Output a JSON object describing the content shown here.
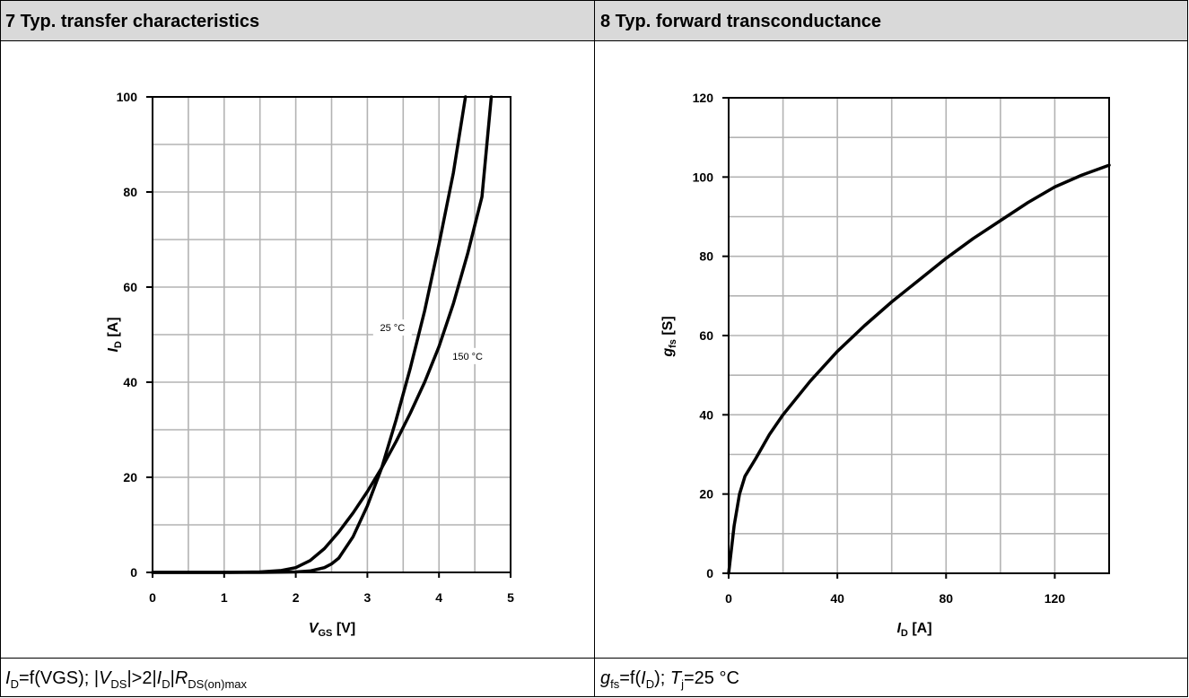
{
  "panels": [
    {
      "title": "7 Typ. transfer characteristics",
      "caption": {
        "i": "I",
        "sub_d": "D",
        "eq": "=f(VGS); |",
        "v": "V",
        "sub_ds": "DS",
        "rest1": "|>2|",
        "i2": "I",
        "sub_d2": "D",
        "rest2": "|",
        "r": "R",
        "sub_r": "DS(on)max"
      }
    },
    {
      "title": "8 Typ. forward transconductance",
      "caption": {
        "g": "g",
        "sub_fs": "fs",
        "eq": "=f(",
        "i": "I",
        "sub_d": "D",
        "rest": "); ",
        "t": "T",
        "sub_j": "j",
        "tail": "=25 °C"
      }
    }
  ],
  "chart_data": [
    {
      "type": "line",
      "xlabel": {
        "main": "V",
        "sub": "GS",
        "unit": " [V]"
      },
      "ylabel": {
        "main": "I",
        "sub": "D",
        "unit": " [A]"
      },
      "xlim": [
        0,
        5
      ],
      "ylim": [
        0,
        100
      ],
      "xticks": [
        0,
        1,
        2,
        3,
        4,
        5
      ],
      "yticks": [
        0,
        20,
        40,
        60,
        80,
        100
      ],
      "grid": true,
      "series": [
        {
          "name": "25 °C",
          "x": [
            0,
            1.0,
            1.5,
            1.8,
            2.0,
            2.2,
            2.4,
            2.6,
            2.8,
            3.0,
            3.2,
            3.4,
            3.6,
            3.8,
            4.0,
            4.2,
            4.4,
            4.6,
            4.73
          ],
          "y": [
            0,
            0,
            0.1,
            0.4,
            1.0,
            2.5,
            5.0,
            8.5,
            12.5,
            17.0,
            22.0,
            27.5,
            33.5,
            40.0,
            47.5,
            56.5,
            67.0,
            79.0,
            100.0
          ]
        },
        {
          "name": "150 °C",
          "x": [
            0,
            1.0,
            1.5,
            2.0,
            2.2,
            2.4,
            2.5,
            2.6,
            2.8,
            3.0,
            3.2,
            3.4,
            3.6,
            3.8,
            4.0,
            4.2,
            4.37
          ],
          "y": [
            0,
            0,
            0,
            0.1,
            0.3,
            1.0,
            1.8,
            3.0,
            7.5,
            14.0,
            22.0,
            32.0,
            43.0,
            55.0,
            69.0,
            84.0,
            100.0
          ]
        }
      ],
      "labels": [
        {
          "text": "25 °C",
          "x": 3.35,
          "y": 51.5
        },
        {
          "text": "150 °C",
          "x": 4.4,
          "y": 45.5
        }
      ]
    },
    {
      "type": "line",
      "xlabel": {
        "main": "I",
        "sub": "D",
        "unit": " [A]"
      },
      "ylabel": {
        "main": "g",
        "sub": "fs",
        "unit": " [S]"
      },
      "xlim": [
        0,
        140
      ],
      "ylim": [
        0,
        120
      ],
      "xticks": [
        0,
        40,
        80,
        120
      ],
      "yticks": [
        0,
        20,
        40,
        60,
        80,
        100,
        120
      ],
      "grid": true,
      "series": [
        {
          "name": "",
          "x": [
            0,
            2,
            4,
            6,
            10,
            15,
            20,
            30,
            40,
            50,
            60,
            70,
            80,
            90,
            100,
            110,
            120,
            130,
            140
          ],
          "y": [
            0,
            12,
            20,
            24.5,
            29,
            35,
            40,
            48.5,
            56,
            62.5,
            68.5,
            74,
            79.5,
            84.5,
            89,
            93.5,
            97.5,
            100.5,
            103
          ]
        }
      ]
    }
  ]
}
